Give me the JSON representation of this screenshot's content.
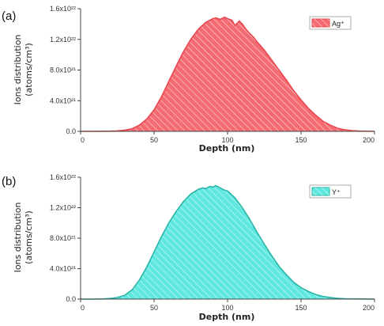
{
  "chart_data": [
    {
      "panel_label": "(a)",
      "type": "area",
      "xlabel": "Depth (nm)",
      "ylabel_line1": "Ions distribution",
      "ylabel_line2": "(atoms/cm³)",
      "xlim": [
        0,
        200
      ],
      "ylim": [
        0,
        1.6e+22
      ],
      "xticks": [
        "0",
        "50",
        "100",
        "150",
        "200"
      ],
      "yticks": [
        "0.0",
        "4.0x10²¹",
        "8.0x10²¹",
        "1.2x10²²",
        "1.6x10²²"
      ],
      "legend": "top-right",
      "grid": false,
      "series": [
        {
          "name": "Ag⁺",
          "color": "#e8474f",
          "fill": "#f56b72",
          "x": [
            0,
            10,
            20,
            25,
            30,
            35,
            40,
            45,
            50,
            55,
            60,
            65,
            70,
            75,
            80,
            85,
            90,
            92,
            95,
            98,
            100,
            103,
            105,
            108,
            110,
            113,
            115,
            118,
            120,
            125,
            130,
            135,
            140,
            145,
            150,
            155,
            160,
            165,
            170,
            175,
            180,
            185,
            190,
            200
          ],
          "y": [
            0,
            0,
            2e+19,
            6e+19,
            1.5e+20,
            3.5e+20,
            8e+20,
            1.6e+21,
            2.8e+21,
            4.5e+21,
            6.5e+21,
            8.5e+21,
            1.04e+22,
            1.2e+22,
            1.33e+22,
            1.42e+22,
            1.47e+22,
            1.48e+22,
            1.46e+22,
            1.49e+22,
            1.47e+22,
            1.45e+22,
            1.38e+22,
            1.44e+22,
            1.4e+22,
            1.32e+22,
            1.28e+22,
            1.22e+22,
            1.17e+22,
            1.06e+22,
            9.3e+21,
            8e+21,
            6.7e+21,
            5.3e+21,
            4.1e+21,
            3e+21,
            2.1e+21,
            1.3e+21,
            8e+20,
            4e+20,
            2e+20,
            8e+19,
            3e+19,
            0
          ]
        }
      ]
    },
    {
      "panel_label": "(b)",
      "type": "area",
      "xlabel": "Depth (nm)",
      "ylabel_line1": "Ions distribution",
      "ylabel_line2": "(atoms/cm³)",
      "xlim": [
        0,
        200
      ],
      "ylim": [
        0,
        1.6e+22
      ],
      "xticks": [
        "0",
        "50",
        "100",
        "150",
        "200"
      ],
      "yticks": [
        "0.0",
        "4.0x10²¹",
        "8.0x10²¹",
        "1.2x10²²",
        "1.6x10²²"
      ],
      "legend": "top-right",
      "grid": false,
      "series": [
        {
          "name": "Y⁺",
          "color": "#2bb5a5",
          "fill": "#5ee8e0",
          "x": [
            0,
            10,
            15,
            20,
            25,
            30,
            35,
            40,
            45,
            50,
            55,
            60,
            65,
            70,
            75,
            80,
            83,
            85,
            88,
            90,
            92,
            95,
            98,
            100,
            105,
            110,
            115,
            120,
            125,
            130,
            135,
            140,
            145,
            150,
            155,
            160,
            165,
            170,
            175,
            180,
            190,
            200
          ],
          "y": [
            0,
            0,
            2e+19,
            8e+19,
            2e+20,
            5e+20,
            1.2e+21,
            2.5e+21,
            4.2e+21,
            6.2e+21,
            8.2e+21,
            1e+22,
            1.15e+22,
            1.28e+22,
            1.38e+22,
            1.44e+22,
            1.46e+22,
            1.45e+22,
            1.48e+22,
            1.47e+22,
            1.49e+22,
            1.46e+22,
            1.43e+22,
            1.42e+22,
            1.33e+22,
            1.2e+22,
            1.05e+22,
            8.8e+21,
            7.2e+21,
            5.7e+21,
            4.3e+21,
            3.2e+21,
            2.2e+21,
            1.5e+21,
            1e+21,
            6e+20,
            3.5e+20,
            2e+20,
            1e+20,
            5e+19,
            2e+19,
            0
          ]
        }
      ]
    }
  ]
}
